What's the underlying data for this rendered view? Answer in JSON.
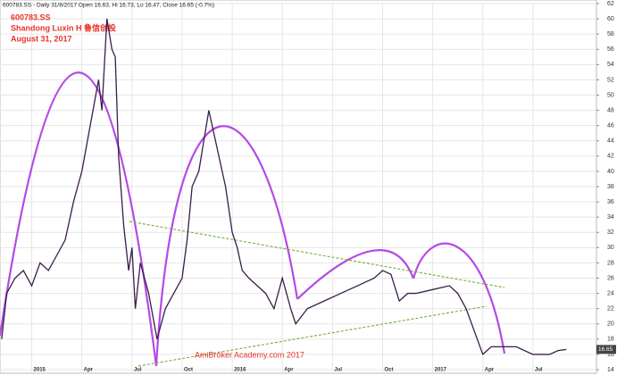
{
  "chart_data": {
    "type": "line",
    "header": "600783.SS - Daily 31/8/2017 Open 16.63, Hi 16.73, Lo 16.47, Close 16.65 (-0.7%)",
    "title": "600783.SS",
    "subtitle": "Shandong Luxin H 鲁信创投",
    "date_label": "August 31, 2017",
    "watermark": "AmiBroker Academy.com  2017",
    "last_price_label": "16.65",
    "xlim": [
      -1.9,
      33.8
    ],
    "ylim": [
      14,
      62
    ],
    "xticks": [
      {
        "value": 0,
        "label": "2015"
      },
      {
        "value": 3,
        "label": "Apr"
      },
      {
        "value": 6,
        "label": "Jul"
      },
      {
        "value": 9,
        "label": "Oct"
      },
      {
        "value": 12,
        "label": "2016"
      },
      {
        "value": 15,
        "label": "Apr"
      },
      {
        "value": 18,
        "label": "Jul"
      },
      {
        "value": 21,
        "label": "Oct"
      },
      {
        "value": 24,
        "label": "2017"
      },
      {
        "value": 27,
        "label": "Apr"
      },
      {
        "value": 30,
        "label": "Jul"
      }
    ],
    "yticks": [
      14,
      16,
      18,
      20,
      22,
      24,
      26,
      28,
      30,
      32,
      34,
      36,
      38,
      40,
      42,
      44,
      46,
      48,
      50,
      52,
      54,
      56,
      58,
      60,
      62
    ],
    "grid": true,
    "series": [
      {
        "name": "600783.SS",
        "color": "#3a1d4a",
        "x": [
          -1.8,
          -1.5,
          -1,
          -0.5,
          0,
          0.5,
          1,
          1.5,
          2,
          2.5,
          3,
          3.5,
          4,
          4.2,
          4.5,
          4.8,
          5,
          5.2,
          5.5,
          5.8,
          6,
          6.2,
          6.5,
          7,
          7.5,
          8,
          8.5,
          9,
          9.3,
          9.6,
          10,
          10.3,
          10.6,
          10.9,
          11.2,
          11.6,
          12,
          12.3,
          12.6,
          13,
          13.5,
          14,
          14.5,
          15,
          15.5,
          15.8,
          16.5,
          17.5,
          18.5,
          19.5,
          20.5,
          21,
          21.5,
          22,
          22.5,
          23,
          24,
          25,
          25.5,
          26,
          26.5,
          27,
          27.5,
          28,
          29,
          30,
          31,
          31.5,
          32
        ],
        "values": [
          18,
          24,
          26,
          27,
          25,
          28,
          27,
          29,
          31,
          36,
          40,
          46,
          52,
          48,
          60,
          56,
          55,
          42,
          33,
          27,
          30,
          22,
          28,
          24,
          18,
          22,
          24,
          26,
          31,
          38,
          40,
          44,
          48,
          45,
          42,
          38,
          32,
          30,
          27,
          26,
          25,
          24,
          22,
          26,
          22,
          20,
          22,
          23,
          24,
          25,
          26,
          27,
          26.5,
          23,
          24,
          24,
          24.5,
          25,
          24,
          22,
          19,
          16,
          17,
          17,
          17,
          16,
          16,
          16.5,
          16.65
        ]
      }
    ]
  }
}
